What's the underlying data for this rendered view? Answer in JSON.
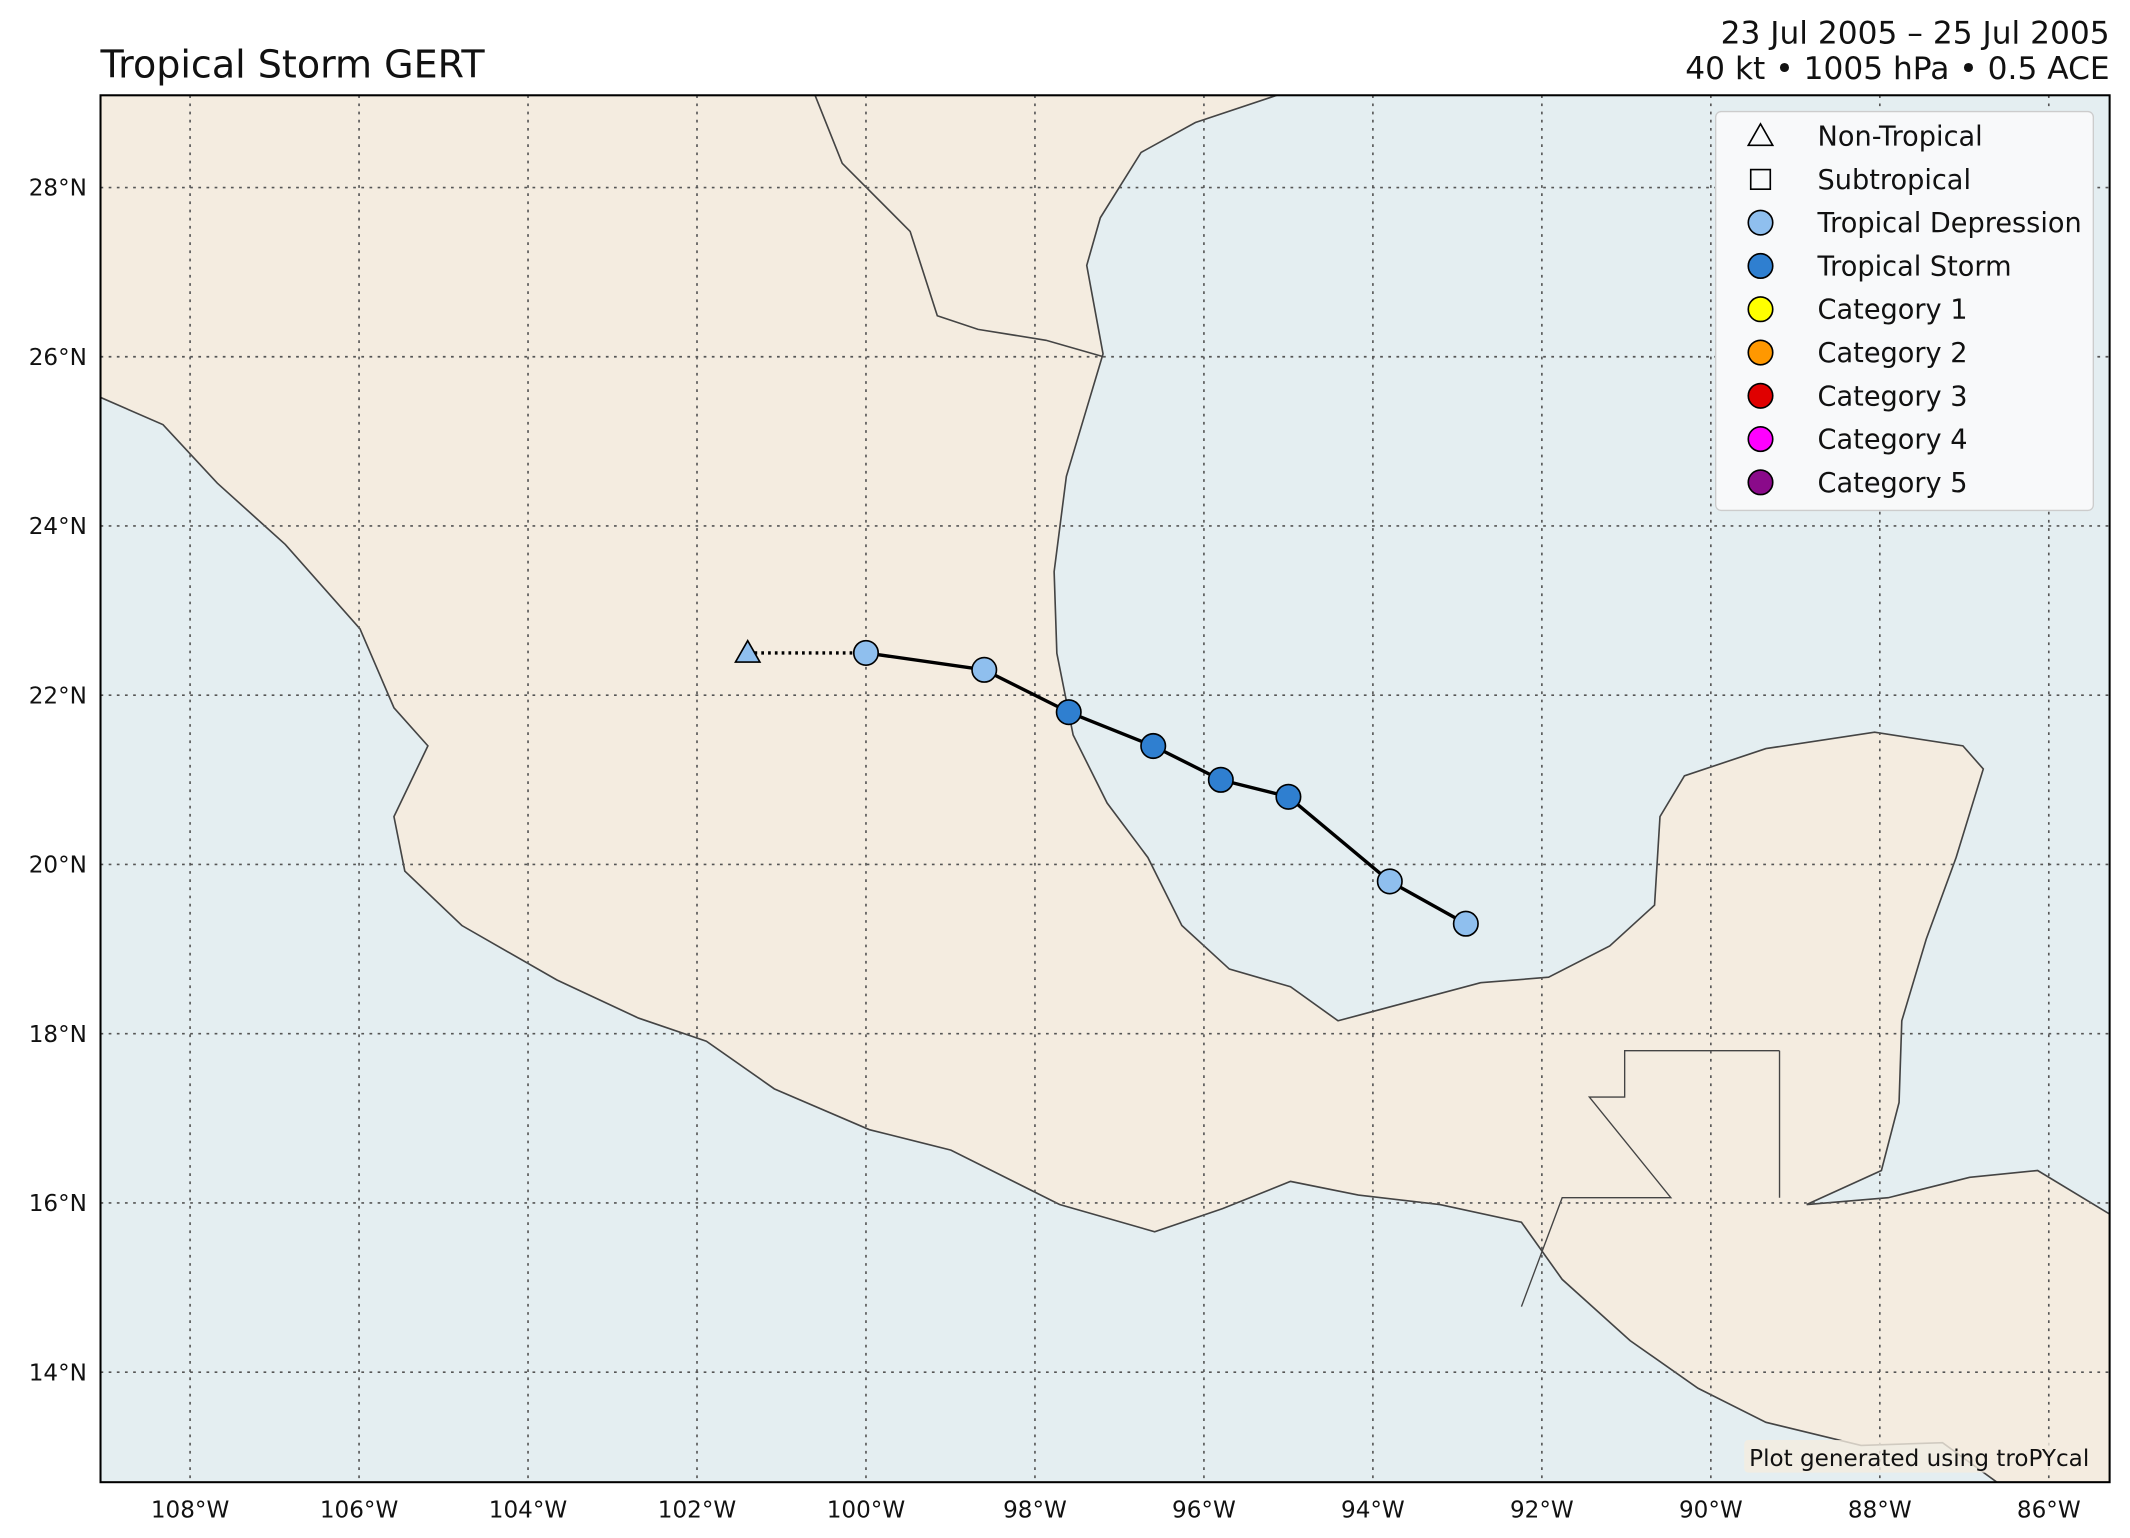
{
  "chart_data": {
    "type": "track",
    "title": "Tropical Storm GERT",
    "subtitle": [
      "23 Jul 2005 – 25 Jul 2005",
      "40 kt • 1005 hPa • 0.5 ACE"
    ],
    "credit": "Plot generated using troPYcal",
    "xlim": [
      -109.06,
      -85.28
    ],
    "ylim": [
      12.7,
      29.09
    ],
    "xticks": [
      {
        "value": -108,
        "label": "108°W"
      },
      {
        "value": -106,
        "label": "106°W"
      },
      {
        "value": -104,
        "label": "104°W"
      },
      {
        "value": -102,
        "label": "102°W"
      },
      {
        "value": -100,
        "label": "100°W"
      },
      {
        "value": -98,
        "label": "98°W"
      },
      {
        "value": -96,
        "label": "96°W"
      },
      {
        "value": -94,
        "label": "94°W"
      },
      {
        "value": -92,
        "label": "92°W"
      },
      {
        "value": -90,
        "label": "90°W"
      },
      {
        "value": -88,
        "label": "88°W"
      },
      {
        "value": -86,
        "label": "86°W"
      }
    ],
    "yticks": [
      {
        "value": 14,
        "label": "14°N"
      },
      {
        "value": 16,
        "label": "16°N"
      },
      {
        "value": 18,
        "label": "18°N"
      },
      {
        "value": 20,
        "label": "20°N"
      },
      {
        "value": 22,
        "label": "22°N"
      },
      {
        "value": 24,
        "label": "24°N"
      },
      {
        "value": 26,
        "label": "26°N"
      },
      {
        "value": 28,
        "label": "28°N"
      }
    ],
    "grid": true,
    "legend_position": "upper right",
    "legend": [
      {
        "label": "Non-Tropical",
        "marker": "triangle",
        "color": "none"
      },
      {
        "label": "Subtropical",
        "marker": "square",
        "color": "none"
      },
      {
        "label": "Tropical Depression",
        "marker": "circle",
        "color": "#8fbfee"
      },
      {
        "label": "Tropical Storm",
        "marker": "circle",
        "color": "#2f7fd0"
      },
      {
        "label": "Category 1",
        "marker": "circle",
        "color": "#ffff00"
      },
      {
        "label": "Category 2",
        "marker": "circle",
        "color": "#ff9800"
      },
      {
        "label": "Category 3",
        "marker": "circle",
        "color": "#e00000"
      },
      {
        "label": "Category 4",
        "marker": "circle",
        "color": "#ff00ff"
      },
      {
        "label": "Category 5",
        "marker": "circle",
        "color": "#8a0a8a"
      }
    ],
    "track": {
      "lon": [
        -101.4,
        -100.0,
        -98.6,
        -97.6,
        -96.6,
        -95.8,
        -95.0,
        -93.8,
        -92.9
      ],
      "lat": [
        22.5,
        22.5,
        22.3,
        21.8,
        21.4,
        21.0,
        20.8,
        19.8,
        19.3
      ],
      "category": [
        0,
        2,
        2,
        3,
        3,
        3,
        3,
        2,
        2
      ]
    }
  }
}
